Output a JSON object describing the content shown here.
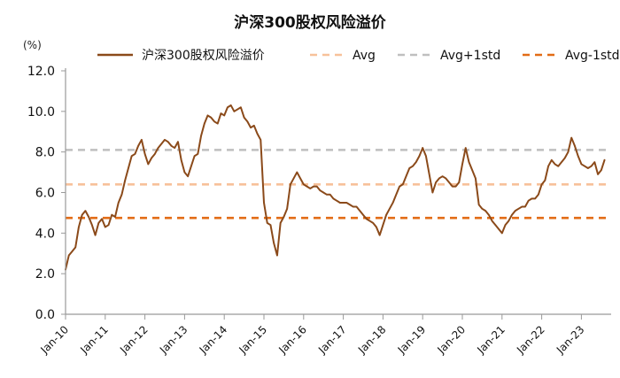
{
  "chart_data": {
    "type": "line",
    "title": "沪深300股权风险溢价",
    "unit_label": "(%)",
    "xlabel": "",
    "ylabel": "",
    "ylim": [
      0,
      12
    ],
    "grid": false,
    "legend_position": "top",
    "x_tick_labels": [
      "Jan-10",
      "Jan-11",
      "Jan-12",
      "Jan-13",
      "Jan-14",
      "Jan-15",
      "Jan-16",
      "Jan-17",
      "Jan-18",
      "Jan-19",
      "Jan-20",
      "Jan-21",
      "Jan-22",
      "Jan-23"
    ],
    "y_tick_labels": [
      "12.0",
      "10.0",
      "8.0",
      "6.0",
      "4.0",
      "2.0",
      "0.0"
    ],
    "y_ticks": [
      12,
      10,
      8,
      6,
      4,
      2,
      0
    ],
    "series": [
      {
        "name": "沪深300股权风险溢价",
        "type": "line",
        "color": "#8b4a1a",
        "x": [
          "2010-01",
          "2010-02",
          "2010-03",
          "2010-04",
          "2010-05",
          "2010-06",
          "2010-07",
          "2010-08",
          "2010-09",
          "2010-10",
          "2010-11",
          "2010-12",
          "2011-01",
          "2011-02",
          "2011-03",
          "2011-04",
          "2011-05",
          "2011-06",
          "2011-07",
          "2011-08",
          "2011-09",
          "2011-10",
          "2011-11",
          "2011-12",
          "2012-01",
          "2012-02",
          "2012-03",
          "2012-04",
          "2012-05",
          "2012-06",
          "2012-07",
          "2012-08",
          "2012-09",
          "2012-10",
          "2012-11",
          "2012-12",
          "2013-01",
          "2013-02",
          "2013-03",
          "2013-04",
          "2013-05",
          "2013-06",
          "2013-07",
          "2013-08",
          "2013-09",
          "2013-10",
          "2013-11",
          "2013-12",
          "2014-01",
          "2014-02",
          "2014-03",
          "2014-04",
          "2014-05",
          "2014-06",
          "2014-07",
          "2014-08",
          "2014-09",
          "2014-10",
          "2014-11",
          "2014-12",
          "2015-01",
          "2015-02",
          "2015-03",
          "2015-04",
          "2015-05",
          "2015-06",
          "2015-07",
          "2015-08",
          "2015-09",
          "2015-10",
          "2015-11",
          "2015-12",
          "2016-01",
          "2016-02",
          "2016-03",
          "2016-04",
          "2016-05",
          "2016-06",
          "2016-07",
          "2016-08",
          "2016-09",
          "2016-10",
          "2016-11",
          "2016-12",
          "2017-01",
          "2017-02",
          "2017-03",
          "2017-04",
          "2017-05",
          "2017-06",
          "2017-07",
          "2017-08",
          "2017-09",
          "2017-10",
          "2017-11",
          "2017-12",
          "2018-01",
          "2018-02",
          "2018-03",
          "2018-04",
          "2018-05",
          "2018-06",
          "2018-07",
          "2018-08",
          "2018-09",
          "2018-10",
          "2018-11",
          "2018-12",
          "2019-01",
          "2019-02",
          "2019-03",
          "2019-04",
          "2019-05",
          "2019-06",
          "2019-07",
          "2019-08",
          "2019-09",
          "2019-10",
          "2019-11",
          "2019-12",
          "2020-01",
          "2020-02",
          "2020-03",
          "2020-04",
          "2020-05",
          "2020-06",
          "2020-07",
          "2020-08",
          "2020-09",
          "2020-10",
          "2020-11",
          "2020-12",
          "2021-01",
          "2021-02",
          "2021-03",
          "2021-04",
          "2021-05",
          "2021-06",
          "2021-07",
          "2021-08",
          "2021-09",
          "2021-10",
          "2021-11",
          "2021-12",
          "2022-01",
          "2022-02",
          "2022-03",
          "2022-04",
          "2022-05",
          "2022-06",
          "2022-07",
          "2022-08",
          "2022-09",
          "2022-10",
          "2022-11",
          "2022-12",
          "2023-01",
          "2023-02",
          "2023-03",
          "2023-04",
          "2023-05",
          "2023-06",
          "2023-07",
          "2023-08"
        ],
        "values": [
          2.2,
          2.9,
          3.1,
          3.3,
          4.3,
          4.9,
          5.1,
          4.8,
          4.4,
          3.9,
          4.5,
          4.7,
          4.3,
          4.4,
          4.9,
          4.8,
          5.5,
          5.9,
          6.6,
          7.2,
          7.8,
          7.9,
          8.3,
          8.6,
          7.9,
          7.4,
          7.7,
          7.9,
          8.2,
          8.4,
          8.6,
          8.5,
          8.3,
          8.2,
          8.5,
          7.6,
          7.0,
          6.8,
          7.3,
          7.8,
          7.9,
          8.8,
          9.4,
          9.8,
          9.7,
          9.5,
          9.4,
          9.9,
          9.8,
          10.2,
          10.3,
          10.0,
          10.1,
          10.2,
          9.7,
          9.5,
          9.2,
          9.3,
          8.9,
          8.6,
          5.5,
          4.5,
          4.4,
          3.5,
          2.9,
          4.5,
          4.8,
          5.2,
          6.4,
          6.7,
          7.0,
          6.7,
          6.4,
          6.3,
          6.2,
          6.3,
          6.3,
          6.1,
          6.0,
          5.9,
          5.9,
          5.7,
          5.6,
          5.5,
          5.5,
          5.5,
          5.4,
          5.3,
          5.3,
          5.1,
          4.9,
          4.7,
          4.6,
          4.5,
          4.3,
          3.9,
          4.4,
          4.9,
          5.2,
          5.5,
          5.9,
          6.3,
          6.4,
          6.8,
          7.2,
          7.3,
          7.5,
          7.8,
          8.2,
          7.8,
          6.9,
          6.0,
          6.5,
          6.7,
          6.8,
          6.7,
          6.5,
          6.3,
          6.3,
          6.5,
          7.4,
          8.2,
          7.5,
          7.1,
          6.7,
          5.4,
          5.2,
          5.1,
          4.9,
          4.6,
          4.4,
          4.2,
          4.0,
          4.4,
          4.6,
          4.9,
          5.1,
          5.2,
          5.3,
          5.3,
          5.6,
          5.7,
          5.7,
          5.9,
          6.4,
          6.6,
          7.3,
          7.6,
          7.4,
          7.3,
          7.5,
          7.7,
          8.0,
          8.7,
          8.3,
          7.8,
          7.4,
          7.3,
          7.2,
          7.3,
          7.5,
          6.9,
          7.1,
          7.6
        ]
      },
      {
        "name": "Avg",
        "type": "reference",
        "style": "dashed",
        "color": "#f7c19a",
        "value": 6.4
      },
      {
        "name": "Avg+1std",
        "type": "reference",
        "style": "dashed",
        "color": "#bfbfbf",
        "value": 8.1
      },
      {
        "name": "Avg-1std",
        "type": "reference",
        "style": "dashed",
        "color": "#e26c16",
        "value": 4.75
      }
    ]
  }
}
